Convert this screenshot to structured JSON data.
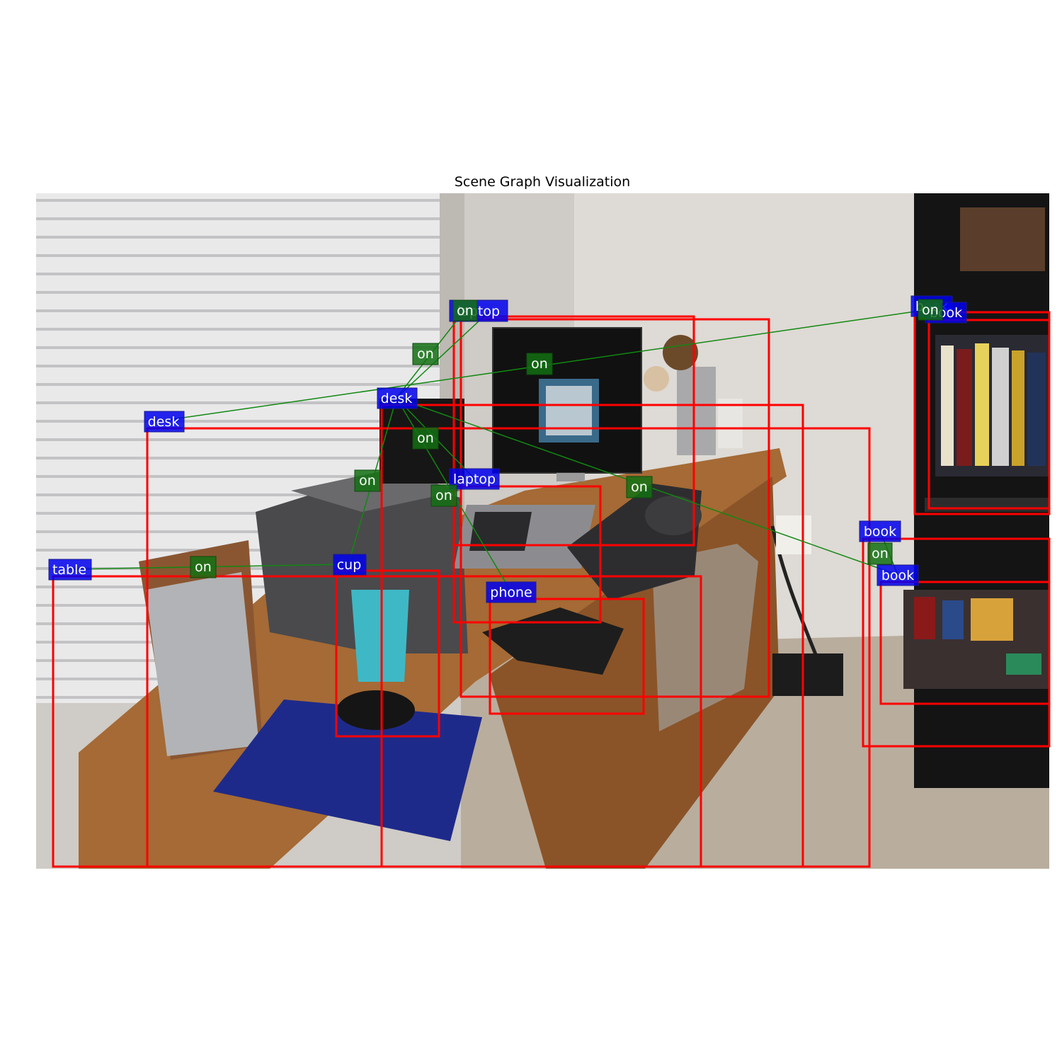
{
  "title": "Scene Graph Visualization",
  "nodes": [
    {
      "id": "laptop_top",
      "label": "laptop"
    },
    {
      "id": "desk_main",
      "label": "desk"
    },
    {
      "id": "desk_left",
      "label": "desk"
    },
    {
      "id": "laptop_mid",
      "label": "laptop"
    },
    {
      "id": "cup",
      "label": "cup"
    },
    {
      "id": "table",
      "label": "table"
    },
    {
      "id": "phone",
      "label": "phone"
    },
    {
      "id": "book_top",
      "label": "book"
    },
    {
      "id": "book_top2",
      "label": "book"
    },
    {
      "id": "book_mid",
      "label": "book"
    },
    {
      "id": "book_low",
      "label": "book"
    }
  ],
  "relations": [
    {
      "label": "on",
      "subject": "laptop_top",
      "object": "desk_main"
    },
    {
      "label": "on",
      "subject": "laptop_top",
      "object": "desk_main"
    },
    {
      "label": "on",
      "subject": "book_top",
      "object": "desk_left"
    },
    {
      "label": "on",
      "subject": "book_top2",
      "object": "book_top"
    },
    {
      "label": "on",
      "subject": "laptop_mid",
      "object": "desk_main"
    },
    {
      "label": "on",
      "subject": "cup",
      "object": "desk_main"
    },
    {
      "label": "on",
      "subject": "phone",
      "object": "desk_main"
    },
    {
      "label": "on",
      "subject": "book_low",
      "object": "desk_main"
    },
    {
      "label": "on",
      "subject": "table",
      "object": "cup"
    },
    {
      "label": "on",
      "subject": "book_mid",
      "object": "book_low"
    }
  ],
  "colors": {
    "bbox": "#ff0000",
    "object_tag": "#0000ee",
    "relation_tag": "#137013",
    "edge": "#118811"
  }
}
